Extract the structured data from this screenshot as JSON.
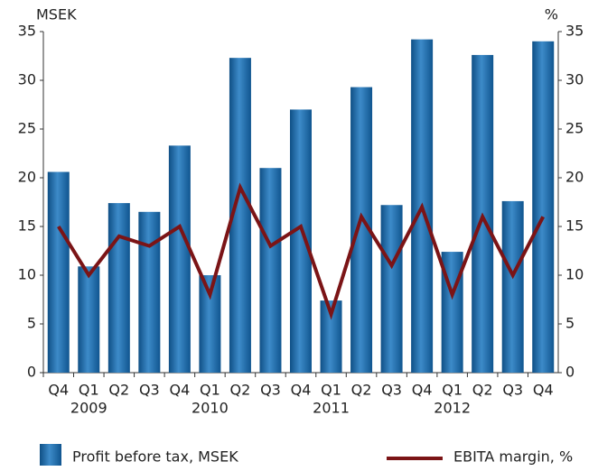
{
  "chart_data": {
    "type": "bar-line",
    "y_label": "MSEK",
    "y2_label": "%",
    "categories": [
      "Q4",
      "Q1",
      "Q2",
      "Q3",
      "Q4",
      "Q1",
      "Q2",
      "Q3",
      "Q4",
      "Q1",
      "Q2",
      "Q3",
      "Q4",
      "Q1",
      "Q2",
      "Q3",
      "Q4"
    ],
    "year_labels": [
      null,
      "2009",
      null,
      null,
      null,
      "2010",
      null,
      null,
      null,
      "2011",
      null,
      null,
      null,
      "2012",
      null,
      null,
      null
    ],
    "series": [
      {
        "name": "Profit before tax, MSEK",
        "type": "bar",
        "color": "#1f6aa8",
        "values": [
          20.6,
          10.9,
          17.4,
          16.5,
          23.3,
          10.0,
          32.3,
          21.0,
          27.0,
          7.4,
          29.3,
          17.2,
          34.2,
          12.4,
          32.6,
          17.6,
          34.0
        ]
      },
      {
        "name": "EBITA margin, %",
        "type": "line",
        "axis": "y2",
        "color": "#7b1416",
        "values": [
          15,
          10,
          14,
          13,
          15,
          8,
          19,
          13,
          15,
          6,
          16,
          11,
          17,
          8,
          16,
          10,
          16
        ]
      }
    ],
    "ylim": [
      0,
      35
    ],
    "yticks": [
      0,
      5,
      10,
      15,
      20,
      25,
      30,
      35
    ],
    "y2lim": [
      0,
      35
    ],
    "y2ticks": [
      0,
      5,
      10,
      15,
      20,
      25,
      30,
      35
    ]
  }
}
